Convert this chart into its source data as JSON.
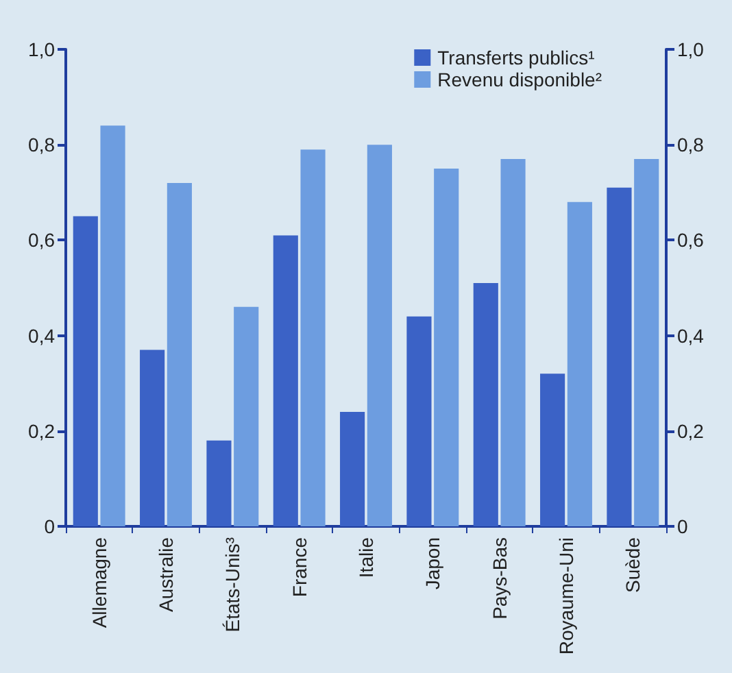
{
  "chart_data": {
    "type": "bar",
    "categories": [
      "Allemagne",
      "Australie",
      "États-Unis³",
      "France",
      "Italie",
      "Japon",
      "Pays-Bas",
      "Royaume-Uni",
      "Suède"
    ],
    "series": [
      {
        "name": "Transferts publics¹",
        "color": "#3b62c6",
        "values": [
          0.65,
          0.37,
          0.18,
          0.61,
          0.24,
          0.44,
          0.51,
          0.32,
          0.71
        ]
      },
      {
        "name": "Revenu disponible²",
        "color": "#6d9de0",
        "values": [
          0.84,
          0.72,
          0.46,
          0.79,
          0.8,
          0.75,
          0.77,
          0.68,
          0.77
        ]
      }
    ],
    "ylim": [
      0,
      1
    ],
    "yticks": [
      0,
      {
        "value": 0.2,
        "label": "0,2"
      },
      {
        "value": 0.4,
        "label": "0,4"
      },
      {
        "value": 0.6,
        "label": "0,6"
      },
      {
        "value": 0.8,
        "label": "0,8"
      },
      {
        "value": 1,
        "label": "1,0"
      }
    ],
    "y2lim": [
      0,
      1
    ],
    "y2ticks": [
      0,
      {
        "value": 0.2,
        "label": "0,2"
      },
      {
        "value": 0.4,
        "label": "0,4"
      },
      {
        "value": 0.6,
        "label": "0,6"
      },
      {
        "value": 0.8,
        "label": "0,8"
      },
      {
        "value": 1,
        "label": "1,0"
      }
    ],
    "grid": false,
    "legend": "top right"
  }
}
